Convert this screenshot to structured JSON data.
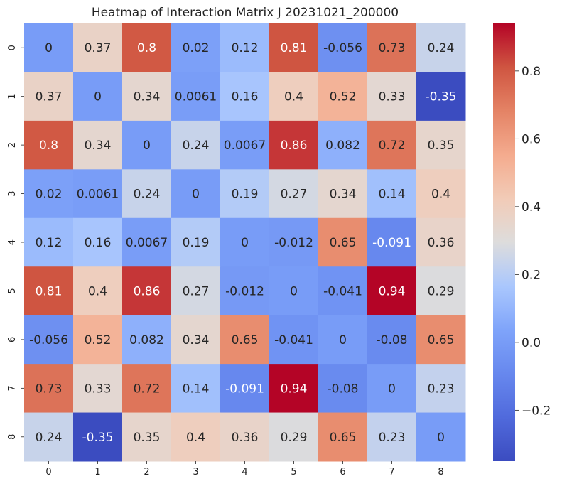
{
  "chart_data": {
    "type": "heatmap",
    "title": "Heatmap of Interaction Matrix J 20231021_200000",
    "x_categories": [
      "0",
      "1",
      "2",
      "3",
      "4",
      "5",
      "6",
      "7",
      "8"
    ],
    "y_categories": [
      "0",
      "1",
      "2",
      "3",
      "4",
      "5",
      "6",
      "7",
      "8"
    ],
    "values": [
      [
        0,
        0.37,
        0.8,
        0.02,
        0.12,
        0.81,
        -0.056,
        0.73,
        0.24
      ],
      [
        0.37,
        0,
        0.34,
        0.0061,
        0.16,
        0.4,
        0.52,
        0.33,
        -0.35
      ],
      [
        0.8,
        0.34,
        0,
        0.24,
        0.0067,
        0.86,
        0.082,
        0.72,
        0.35
      ],
      [
        0.02,
        0.0061,
        0.24,
        0,
        0.19,
        0.27,
        0.34,
        0.14,
        0.4
      ],
      [
        0.12,
        0.16,
        0.0067,
        0.19,
        0,
        -0.012,
        0.65,
        -0.091,
        0.36
      ],
      [
        0.81,
        0.4,
        0.86,
        0.27,
        -0.012,
        0,
        -0.041,
        0.94,
        0.29
      ],
      [
        -0.056,
        0.52,
        0.082,
        0.34,
        0.65,
        -0.041,
        0,
        -0.08,
        0.65
      ],
      [
        0.73,
        0.33,
        0.72,
        0.14,
        -0.091,
        0.94,
        -0.08,
        0,
        0.23
      ],
      [
        0.24,
        -0.35,
        0.35,
        0.4,
        0.36,
        0.29,
        0.65,
        0.23,
        0
      ]
    ],
    "annotations": [
      [
        "0",
        "0.37",
        "0.8",
        "0.02",
        "0.12",
        "0.81",
        "-0.056",
        "0.73",
        "0.24"
      ],
      [
        "0.37",
        "0",
        "0.34",
        "0.0061",
        "0.16",
        "0.4",
        "0.52",
        "0.33",
        "-0.35"
      ],
      [
        "0.8",
        "0.34",
        "0",
        "0.24",
        "0.0067",
        "0.86",
        "0.082",
        "0.72",
        "0.35"
      ],
      [
        "0.02",
        "0.0061",
        "0.24",
        "0",
        "0.19",
        "0.27",
        "0.34",
        "0.14",
        "0.4"
      ],
      [
        "0.12",
        "0.16",
        "0.0067",
        "0.19",
        "0",
        "-0.012",
        "0.65",
        "-0.091",
        "0.36"
      ],
      [
        "0.81",
        "0.4",
        "0.86",
        "0.27",
        "-0.012",
        "0",
        "-0.041",
        "0.94",
        "0.29"
      ],
      [
        "-0.056",
        "0.52",
        "0.082",
        "0.34",
        "0.65",
        "-0.041",
        "0",
        "-0.08",
        "0.65"
      ],
      [
        "0.73",
        "0.33",
        "0.72",
        "0.14",
        "-0.091",
        "0.94",
        "-0.08",
        "0",
        "0.23"
      ],
      [
        "0.24",
        "-0.35",
        "0.35",
        "0.4",
        "0.36",
        "0.29",
        "0.65",
        "0.23",
        "0"
      ]
    ],
    "colormap": "coolwarm",
    "colorbar": {
      "vmin": -0.35,
      "vmax": 0.94,
      "ticks": [
        -0.2,
        0.0,
        0.2,
        0.4,
        0.6,
        0.8
      ],
      "tick_labels": [
        "−0.2",
        "0.0",
        "0.2",
        "0.4",
        "0.6",
        "0.8"
      ]
    },
    "grid": false,
    "colors": {
      "low": "#3b4cc0",
      "mid": "#dddcdc",
      "high": "#b40426",
      "dark_text": "#262626",
      "light_text": "#ffffff"
    }
  }
}
